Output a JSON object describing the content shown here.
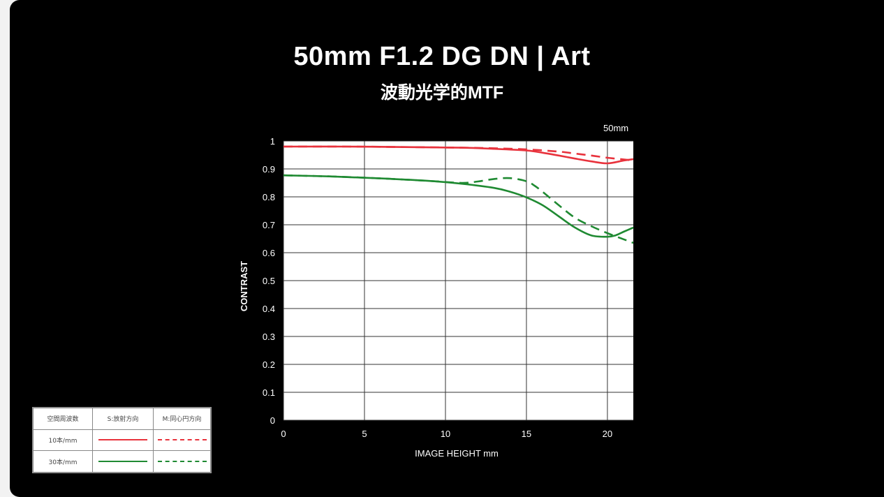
{
  "title": "50mm F1.2 DG DN | Art",
  "subtitle": "波動光学的MTF",
  "focal_label": "50mm",
  "legend": {
    "header": [
      "空間周波数",
      "S:放射方向",
      "M:同心円方向"
    ],
    "rows": [
      {
        "label": "10本/mm",
        "color": "#e8323c"
      },
      {
        "label": "30本/mm",
        "color": "#1f8a32"
      }
    ]
  },
  "colors": {
    "red": "#e8323c",
    "green": "#1f8a32"
  },
  "chart_data": {
    "type": "line",
    "title": "",
    "xlabel": "IMAGE HEIGHT   mm",
    "ylabel": "CONTRAST",
    "xlim": [
      0,
      21.6
    ],
    "ylim": [
      0,
      1
    ],
    "xticks": [
      0,
      5,
      10,
      15,
      20
    ],
    "yticks": [
      0,
      0.1,
      0.2,
      0.3,
      0.4,
      0.5,
      0.6,
      0.7,
      0.8,
      0.9,
      1
    ],
    "ytick_labels": [
      "0",
      "0.1",
      "0.2",
      "0.3",
      "0.4",
      "0.5",
      "0.6",
      "0.7",
      "0.8",
      "0.9",
      "1"
    ],
    "grid": true,
    "series": [
      {
        "freq": "10本/mm",
        "dir": "S:放射方向",
        "color": "#e8323c",
        "style": "solid",
        "x": [
          0,
          4,
          8,
          11,
          13,
          15,
          16,
          17,
          18,
          19,
          20,
          21,
          21.6
        ],
        "y": [
          0.98,
          0.98,
          0.978,
          0.976,
          0.972,
          0.966,
          0.958,
          0.948,
          0.937,
          0.927,
          0.92,
          0.93,
          0.935
        ]
      },
      {
        "freq": "10本/mm",
        "dir": "M:同心円方向",
        "color": "#e8323c",
        "style": "dashed",
        "x": [
          0,
          4,
          8,
          11,
          13,
          15,
          17,
          18,
          19,
          20,
          21,
          21.6
        ],
        "y": [
          0.98,
          0.98,
          0.978,
          0.976,
          0.974,
          0.97,
          0.962,
          0.955,
          0.948,
          0.94,
          0.934,
          0.93
        ]
      },
      {
        "freq": "30本/mm",
        "dir": "S:放射方向",
        "color": "#1f8a32",
        "style": "solid",
        "x": [
          0,
          3,
          6,
          9,
          11,
          13,
          14,
          15,
          16,
          17,
          18,
          19,
          20,
          20.5,
          21,
          21.6
        ],
        "y": [
          0.877,
          0.873,
          0.866,
          0.857,
          0.847,
          0.832,
          0.818,
          0.798,
          0.77,
          0.73,
          0.69,
          0.662,
          0.657,
          0.662,
          0.675,
          0.69
        ]
      },
      {
        "freq": "30本/mm",
        "dir": "M:同心円方向",
        "color": "#1f8a32",
        "style": "dashed",
        "x": [
          0,
          3,
          6,
          9,
          11,
          12,
          13,
          14,
          15,
          15.5,
          16,
          17,
          18,
          19,
          20,
          21,
          21.6
        ],
        "y": [
          0.877,
          0.873,
          0.866,
          0.857,
          0.85,
          0.855,
          0.864,
          0.867,
          0.856,
          0.84,
          0.818,
          0.77,
          0.725,
          0.695,
          0.67,
          0.648,
          0.635
        ]
      }
    ]
  }
}
